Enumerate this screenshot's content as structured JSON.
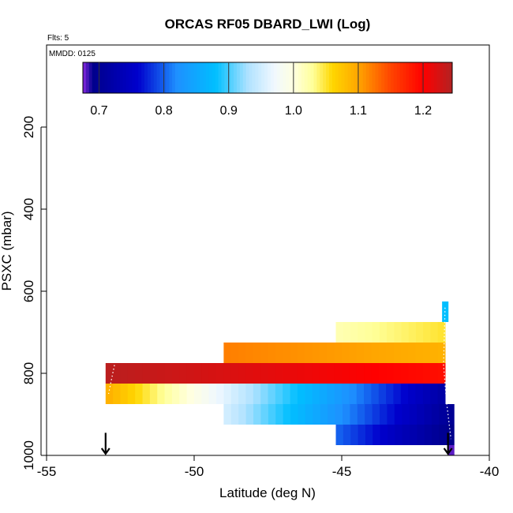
{
  "chart_data": {
    "type": "heatmap",
    "title": "ORCAS RF05 DBARD_LWI (Log)",
    "flights_label": "Flts: 5",
    "date_label": "MMDD: 0125",
    "xlabel": "Latitude (deg N)",
    "ylabel": "PSXC (mbar)",
    "xlim": [
      -55,
      -40
    ],
    "ylim": [
      1000,
      0
    ],
    "x_ticks": [
      -55,
      -50,
      -45,
      -40
    ],
    "y_ticks": [
      200,
      400,
      600,
      800,
      1000
    ],
    "colorbar": {
      "range": [
        0.675,
        1.245
      ],
      "ticks": [
        0.7,
        0.8,
        0.9,
        1.0,
        1.1,
        1.2
      ],
      "tick_labels": [
        "0.7",
        "0.8",
        "0.9",
        "1.0",
        "1.1",
        "1.2"
      ],
      "stops": [
        [
          0.675,
          "#8a2be2"
        ],
        [
          0.69,
          "#00008b"
        ],
        [
          0.76,
          "#0000cd"
        ],
        [
          0.82,
          "#1e90ff"
        ],
        [
          0.88,
          "#00bfff"
        ],
        [
          0.93,
          "#b0e2ff"
        ],
        [
          0.97,
          "#f0f8ff"
        ],
        [
          1.0,
          "#ffffe0"
        ],
        [
          1.03,
          "#ffff99"
        ],
        [
          1.06,
          "#ffd700"
        ],
        [
          1.1,
          "#ffa500"
        ],
        [
          1.15,
          "#ff4500"
        ],
        [
          1.2,
          "#ff0000"
        ],
        [
          1.245,
          "#b22222"
        ]
      ]
    },
    "rows": [
      {
        "p_top": 625,
        "p_bot": 675,
        "lat_start": -41.6,
        "lat_end": -41.4,
        "v_start": 0.88,
        "v_end": 0.88
      },
      {
        "p_top": 675,
        "p_bot": 725,
        "lat_start": -45.2,
        "lat_end": -41.5,
        "v_start": 1.02,
        "v_end": 1.05
      },
      {
        "p_top": 725,
        "p_bot": 775,
        "lat_start": -49.0,
        "lat_end": -41.5,
        "v_start": 1.12,
        "v_end": 1.09
      },
      {
        "p_top": 775,
        "p_bot": 825,
        "lat_start": -53.0,
        "lat_end": -41.5,
        "v_start": 1.24,
        "v_end": 1.19
      },
      {
        "p_top": 825,
        "p_bot": 875,
        "lat_start": -53.0,
        "lat_end": -41.5,
        "v_start": 1.09,
        "v_end": 0.72
      },
      {
        "p_top": 875,
        "p_bot": 925,
        "lat_start": -49.0,
        "lat_end": -41.2,
        "v_start": 0.95,
        "v_end": 0.7
      },
      {
        "p_top": 925,
        "p_bot": 975,
        "lat_start": -45.2,
        "lat_end": -41.2,
        "v_start": 0.8,
        "v_end": 0.69
      },
      {
        "p_top": 975,
        "p_bot": 1000,
        "lat_start": -41.4,
        "lat_end": -41.2,
        "v_start": 0.68,
        "v_end": 0.68
      }
    ],
    "flight_tracks": [
      {
        "points": [
          [
            -52.7,
            780
          ],
          [
            -52.9,
            850
          ]
        ]
      },
      {
        "points": [
          [
            -41.5,
            640
          ],
          [
            -41.55,
            780
          ],
          [
            -41.45,
            870
          ],
          [
            -41.3,
            960
          ]
        ]
      }
    ],
    "arrows": [
      {
        "lat": -53.0,
        "p_from": 970,
        "p_to": 1000
      },
      {
        "lat": -41.4,
        "p_from": 970,
        "p_to": 1000
      }
    ]
  }
}
